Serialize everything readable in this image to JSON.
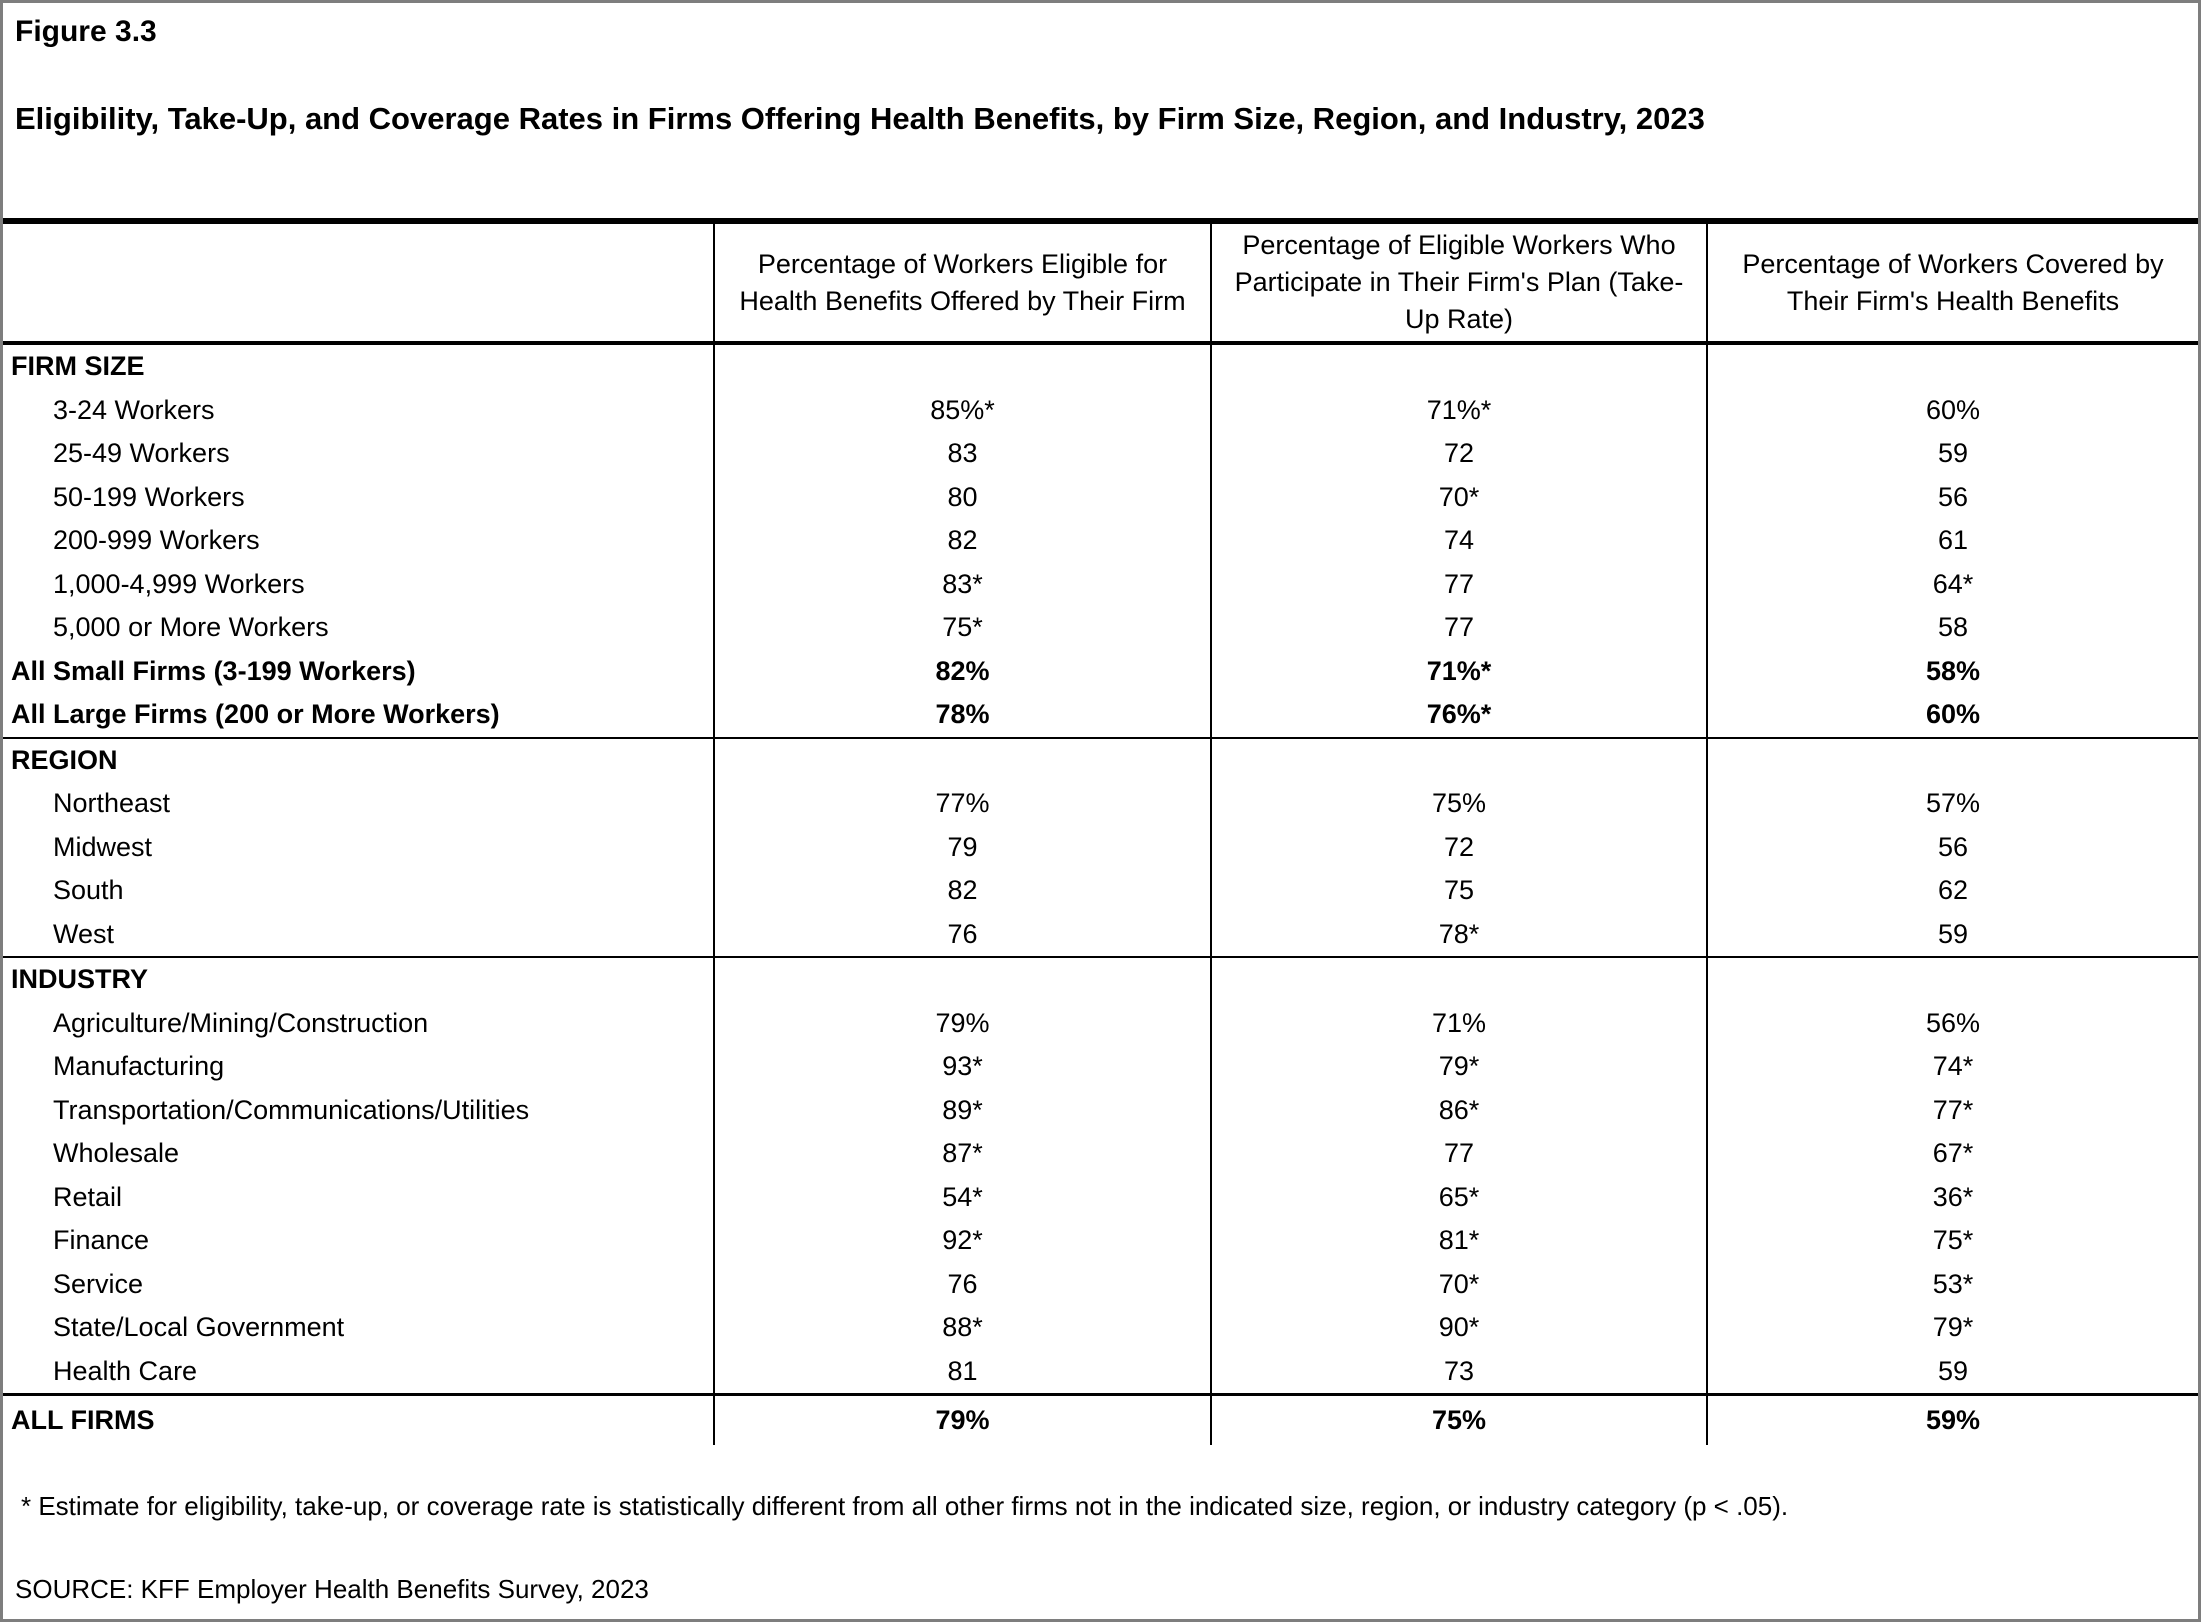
{
  "figure": {
    "label": "Figure 3.3",
    "title": "Eligibility, Take-Up, and Coverage Rates in Firms Offering Health Benefits, by Firm Size, Region, and Industry, 2023"
  },
  "table": {
    "column_headers": [
      "Percentage of Workers Eligible for Health Benefits Offered by Their Firm",
      "Percentage of Eligible Workers Who Participate in Their Firm's Plan (Take-Up Rate)",
      "Percentage of Workers Covered by Their Firm's Health Benefits"
    ],
    "sections": [
      {
        "header": "FIRM SIZE",
        "rows": [
          {
            "label": "3-24 Workers",
            "values": [
              "85%*",
              "71%*",
              "60%"
            ],
            "bold": false
          },
          {
            "label": "25-49 Workers",
            "values": [
              "83",
              "72",
              "59"
            ],
            "bold": false
          },
          {
            "label": "50-199 Workers",
            "values": [
              "80",
              "70*",
              "56"
            ],
            "bold": false
          },
          {
            "label": "200-999 Workers",
            "values": [
              "82",
              "74",
              "61"
            ],
            "bold": false
          },
          {
            "label": "1,000-4,999 Workers",
            "values": [
              "83*",
              "77",
              "64*"
            ],
            "bold": false
          },
          {
            "label": "5,000 or More Workers",
            "values": [
              "75*",
              "77",
              "58"
            ],
            "bold": false
          },
          {
            "label": "All Small Firms (3-199 Workers)",
            "values": [
              "82%",
              "71%*",
              "58%"
            ],
            "bold": true
          },
          {
            "label": "All Large Firms (200 or More Workers)",
            "values": [
              "78%",
              "76%*",
              "60%"
            ],
            "bold": true
          }
        ]
      },
      {
        "header": "REGION",
        "rows": [
          {
            "label": "Northeast",
            "values": [
              "77%",
              "75%",
              "57%"
            ],
            "bold": false
          },
          {
            "label": "Midwest",
            "values": [
              "79",
              "72",
              "56"
            ],
            "bold": false
          },
          {
            "label": "South",
            "values": [
              "82",
              "75",
              "62"
            ],
            "bold": false
          },
          {
            "label": "West",
            "values": [
              "76",
              "78*",
              "59"
            ],
            "bold": false
          }
        ]
      },
      {
        "header": "INDUSTRY",
        "rows": [
          {
            "label": "Agriculture/Mining/Construction",
            "values": [
              "79%",
              "71%",
              "56%"
            ],
            "bold": false
          },
          {
            "label": "Manufacturing",
            "values": [
              "93*",
              "79*",
              "74*"
            ],
            "bold": false
          },
          {
            "label": "Transportation/Communications/Utilities",
            "values": [
              "89*",
              "86*",
              "77*"
            ],
            "bold": false
          },
          {
            "label": "Wholesale",
            "values": [
              "87*",
              "77",
              "67*"
            ],
            "bold": false
          },
          {
            "label": "Retail",
            "values": [
              "54*",
              "65*",
              "36*"
            ],
            "bold": false
          },
          {
            "label": "Finance",
            "values": [
              "92*",
              "81*",
              "75*"
            ],
            "bold": false
          },
          {
            "label": "Service",
            "values": [
              "76",
              "70*",
              "53*"
            ],
            "bold": false
          },
          {
            "label": "State/Local Government",
            "values": [
              "88*",
              "90*",
              "79*"
            ],
            "bold": false
          },
          {
            "label": "Health Care",
            "values": [
              "81",
              "73",
              "59"
            ],
            "bold": false
          }
        ]
      }
    ],
    "total_row": {
      "label": "ALL FIRMS",
      "values": [
        "79%",
        "75%",
        "59%"
      ]
    }
  },
  "footnote": "* Estimate for eligibility, take-up, or coverage rate is statistically different from all other firms not in the indicated size, region, or industry category (p < .05).",
  "source": "SOURCE: KFF Employer Health Benefits Survey, 2023",
  "colors": {
    "text": "#000000",
    "table_lines": "#000000",
    "page_frame": "#7e7e7e",
    "background": "#ffffff"
  }
}
